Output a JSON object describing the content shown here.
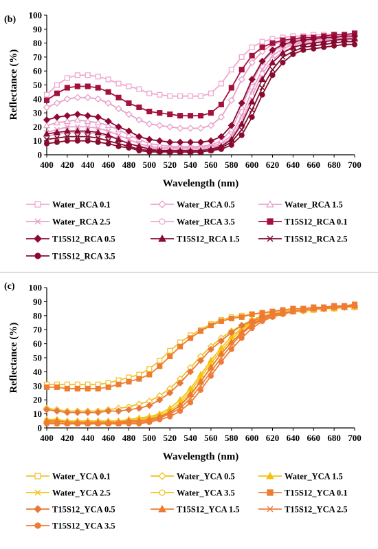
{
  "chart_data": [
    {
      "type": "line",
      "panel_label": "(b)",
      "xlabel": "Wavelength (nm)",
      "ylabel": "Reflectance (%)",
      "xlim": [
        400,
        700
      ],
      "ylim": [
        0,
        100
      ],
      "x_ticks": [
        400,
        420,
        440,
        460,
        480,
        500,
        520,
        540,
        560,
        580,
        600,
        620,
        640,
        660,
        680,
        700
      ],
      "y_ticks": [
        0,
        10,
        20,
        30,
        40,
        50,
        60,
        70,
        80,
        90,
        100
      ],
      "grid": false,
      "legend_position": "bottom",
      "x": [
        400,
        410,
        420,
        430,
        440,
        450,
        460,
        470,
        480,
        490,
        500,
        510,
        520,
        530,
        540,
        550,
        560,
        570,
        580,
        590,
        600,
        610,
        620,
        630,
        640,
        650,
        660,
        670,
        680,
        690,
        700
      ],
      "series": [
        {
          "name": "Water_RCA 0.1",
          "color": "#f0a7d1",
          "marker": "square-open",
          "values": [
            43,
            50,
            55,
            57,
            57,
            56,
            54,
            51,
            49,
            47,
            44,
            43,
            42,
            42,
            42,
            42,
            44,
            51,
            61,
            70,
            77,
            81,
            83,
            84,
            85,
            85,
            86,
            86,
            86,
            86,
            86
          ]
        },
        {
          "name": "Water_RCA 0.5",
          "color": "#e89fcb",
          "marker": "diamond-open",
          "values": [
            34,
            37,
            40,
            41,
            41,
            40,
            37,
            33,
            29,
            25,
            22,
            21,
            20,
            19,
            19,
            19,
            21,
            27,
            39,
            54,
            66,
            74,
            79,
            81,
            82,
            83,
            84,
            84,
            85,
            85,
            85
          ]
        },
        {
          "name": "Water_RCA 1.5",
          "color": "#e9a3cd",
          "marker": "triangle-open",
          "values": [
            21,
            23,
            24,
            25,
            24,
            23,
            21,
            18,
            14,
            11,
            8,
            7,
            6,
            6,
            6,
            6,
            7,
            10,
            18,
            34,
            52,
            66,
            74,
            78,
            80,
            81,
            82,
            83,
            83,
            84,
            84
          ]
        },
        {
          "name": "Water_RCA 2.5",
          "color": "#e8a0cb",
          "marker": "x",
          "values": [
            16,
            18,
            20,
            20,
            20,
            19,
            17,
            14,
            11,
            8,
            6,
            5,
            5,
            5,
            5,
            5,
            6,
            8,
            14,
            28,
            46,
            61,
            71,
            76,
            79,
            80,
            81,
            82,
            83,
            83,
            83
          ]
        },
        {
          "name": "Water_RCA 3.5",
          "color": "#eaa6cf",
          "marker": "circle-open",
          "values": [
            13,
            15,
            16,
            16,
            16,
            15,
            13,
            11,
            8,
            6,
            5,
            4,
            4,
            4,
            4,
            4,
            5,
            7,
            12,
            24,
            42,
            58,
            68,
            74,
            77,
            79,
            80,
            81,
            82,
            82,
            83
          ]
        },
        {
          "name": "T15S12_RCA 0.1",
          "color": "#a5113d",
          "marker": "square",
          "values": [
            39,
            44,
            48,
            49,
            49,
            48,
            45,
            41,
            37,
            34,
            31,
            30,
            29,
            28,
            28,
            28,
            30,
            36,
            48,
            61,
            71,
            77,
            80,
            82,
            83,
            84,
            84,
            85,
            86,
            86,
            87
          ]
        },
        {
          "name": "T15S12_RCA 0.5",
          "color": "#8e0a33",
          "marker": "diamond",
          "values": [
            25,
            27,
            28,
            29,
            28,
            27,
            24,
            20,
            17,
            13,
            11,
            10,
            9,
            9,
            9,
            9,
            10,
            13,
            21,
            37,
            54,
            67,
            75,
            79,
            81,
            82,
            83,
            84,
            84,
            85,
            85
          ]
        },
        {
          "name": "T15S12_RCA 1.5",
          "color": "#8b0a30",
          "marker": "triangle",
          "values": [
            15,
            16,
            17,
            17,
            17,
            16,
            14,
            11,
            8,
            6,
            4,
            3,
            3,
            3,
            3,
            3,
            4,
            6,
            11,
            22,
            38,
            54,
            66,
            73,
            77,
            79,
            80,
            81,
            82,
            83,
            83
          ]
        },
        {
          "name": "T15S12_RCA 2.5",
          "color": "#7a0a2c",
          "marker": "x",
          "values": [
            11,
            12,
            13,
            13,
            13,
            12,
            10,
            8,
            6,
            4,
            3,
            3,
            2,
            2,
            2,
            2,
            3,
            5,
            9,
            18,
            32,
            48,
            61,
            70,
            74,
            77,
            78,
            79,
            80,
            81,
            81
          ]
        },
        {
          "name": "T15S12_RCA 3.5",
          "color": "#8a0b2f",
          "marker": "circle",
          "values": [
            8,
            9,
            10,
            10,
            10,
            9,
            8,
            6,
            5,
            3,
            2,
            2,
            2,
            2,
            2,
            2,
            3,
            4,
            7,
            14,
            27,
            43,
            57,
            66,
            72,
            75,
            76,
            77,
            78,
            79,
            79
          ]
        }
      ]
    },
    {
      "type": "line",
      "panel_label": "(c)",
      "xlabel": "Wavelength (nm)",
      "ylabel": "Reflectance (%)",
      "xlim": [
        400,
        700
      ],
      "ylim": [
        0,
        100
      ],
      "x_ticks": [
        400,
        420,
        440,
        460,
        480,
        500,
        520,
        540,
        560,
        580,
        600,
        620,
        640,
        660,
        680,
        700
      ],
      "y_ticks": [
        0,
        10,
        20,
        30,
        40,
        50,
        60,
        70,
        80,
        90,
        100
      ],
      "grid": false,
      "legend_position": "bottom",
      "x": [
        400,
        410,
        420,
        430,
        440,
        450,
        460,
        470,
        480,
        490,
        500,
        510,
        520,
        530,
        540,
        550,
        560,
        570,
        580,
        590,
        600,
        610,
        620,
        630,
        640,
        650,
        660,
        670,
        680,
        690,
        700
      ],
      "series": [
        {
          "name": "Water_YCA 0.1",
          "color": "#f2c230",
          "marker": "square-open",
          "values": [
            31,
            31,
            31,
            31,
            31,
            31,
            32,
            34,
            36,
            38,
            42,
            48,
            55,
            61,
            66,
            70,
            74,
            77,
            79,
            80,
            81,
            82,
            82,
            83,
            84,
            84,
            85,
            85,
            86,
            86,
            87
          ]
        },
        {
          "name": "Water_YCA 0.5",
          "color": "#f0c020",
          "marker": "diamond-open",
          "values": [
            14,
            13,
            12,
            12,
            12,
            12,
            13,
            14,
            15,
            17,
            19,
            23,
            28,
            35,
            43,
            51,
            58,
            64,
            69,
            73,
            77,
            80,
            81,
            82,
            83,
            84,
            84,
            85,
            85,
            86,
            86
          ]
        },
        {
          "name": "Water_YCA 1.5",
          "color": "#f5c010",
          "marker": "triangle",
          "values": [
            6,
            6,
            5,
            5,
            5,
            5,
            5,
            5,
            6,
            7,
            8,
            10,
            14,
            20,
            28,
            38,
            48,
            57,
            65,
            71,
            76,
            79,
            81,
            82,
            83,
            84,
            84,
            85,
            85,
            86,
            86
          ]
        },
        {
          "name": "Water_YCA 2.5",
          "color": "#f6c412",
          "marker": "x",
          "values": [
            5,
            5,
            4,
            4,
            4,
            4,
            4,
            4,
            5,
            6,
            7,
            9,
            12,
            18,
            26,
            36,
            46,
            55,
            63,
            70,
            75,
            78,
            80,
            82,
            83,
            84,
            84,
            85,
            85,
            86,
            86
          ]
        },
        {
          "name": "Water_YCA 3.5",
          "color": "#f3c21a",
          "marker": "circle-open",
          "values": [
            4,
            4,
            4,
            4,
            4,
            4,
            4,
            4,
            4,
            5,
            6,
            8,
            11,
            16,
            23,
            33,
            43,
            53,
            61,
            68,
            74,
            77,
            80,
            81,
            83,
            83,
            84,
            85,
            85,
            86,
            86
          ]
        },
        {
          "name": "T15S12_YCA 0.1",
          "color": "#ee7d2f",
          "marker": "square",
          "values": [
            29,
            29,
            28,
            28,
            28,
            28,
            29,
            31,
            33,
            35,
            38,
            44,
            51,
            58,
            64,
            69,
            73,
            76,
            78,
            79,
            81,
            82,
            83,
            84,
            85,
            85,
            86,
            86,
            87,
            87,
            88
          ]
        },
        {
          "name": "T15S12_YCA 0.5",
          "color": "#e8793a",
          "marker": "diamond",
          "values": [
            13,
            12,
            11,
            11,
            11,
            11,
            12,
            12,
            13,
            14,
            16,
            20,
            25,
            32,
            40,
            48,
            56,
            62,
            68,
            73,
            76,
            79,
            81,
            82,
            83,
            84,
            85,
            85,
            86,
            86,
            87
          ]
        },
        {
          "name": "T15S12_YCA 1.5",
          "color": "#ee7a2c",
          "marker": "triangle",
          "values": [
            5,
            5,
            4,
            4,
            4,
            4,
            4,
            4,
            5,
            5,
            6,
            8,
            11,
            16,
            24,
            33,
            43,
            53,
            61,
            68,
            74,
            78,
            80,
            82,
            83,
            84,
            85,
            85,
            86,
            86,
            87
          ]
        },
        {
          "name": "T15S12_YCA 2.5",
          "color": "#ec7e3e",
          "marker": "x",
          "values": [
            4,
            3,
            3,
            3,
            3,
            3,
            3,
            3,
            4,
            4,
            5,
            7,
            10,
            14,
            21,
            30,
            40,
            50,
            59,
            67,
            73,
            77,
            80,
            82,
            83,
            84,
            85,
            85,
            86,
            86,
            87
          ]
        },
        {
          "name": "T15S12_YCA 3.5",
          "color": "#ef7c34",
          "marker": "circle",
          "values": [
            3,
            3,
            3,
            3,
            3,
            3,
            3,
            3,
            3,
            3,
            4,
            6,
            8,
            12,
            18,
            27,
            37,
            47,
            56,
            64,
            71,
            76,
            79,
            81,
            83,
            84,
            85,
            86,
            86,
            87,
            87
          ]
        }
      ]
    }
  ]
}
